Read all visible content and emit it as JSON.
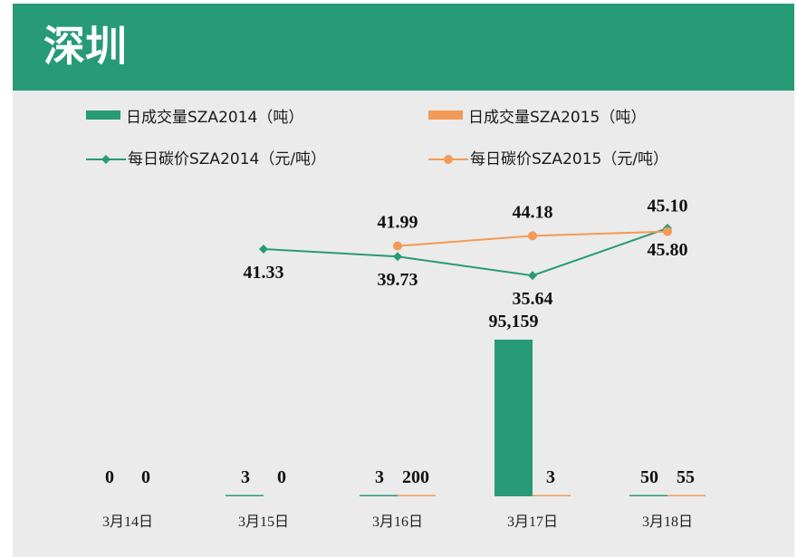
{
  "page": {
    "title": "深圳"
  },
  "colors": {
    "series_2014": "#279a76",
    "series_2015": "#f39a56",
    "header": "#279a76",
    "background": "#ebebeb"
  },
  "legend": [
    {
      "label": "日成交量SZA2014（吨）",
      "kind": "bar",
      "color": "#279a76"
    },
    {
      "label": "日成交量SZA2015（吨）",
      "kind": "bar",
      "color": "#f39a56"
    },
    {
      "label": "每日碳价SZA2014（元/吨）",
      "kind": "line-diamond",
      "color": "#279a76"
    },
    {
      "label": "每日碳价SZA2015（元/吨）",
      "kind": "line-circle",
      "color": "#f39a56"
    }
  ],
  "chart_data": {
    "type": "bar+line",
    "title": "深圳",
    "categories": [
      "3月14日",
      "3月15日",
      "3月16日",
      "3月17日",
      "3月18日"
    ],
    "bar_series": [
      {
        "name": "日成交量SZA2014（吨）",
        "values": [
          0,
          3,
          3,
          95159,
          50
        ],
        "labels": [
          "0",
          "3",
          "3",
          "95,159",
          "50"
        ]
      },
      {
        "name": "日成交量SZA2015（吨）",
        "values": [
          0,
          0,
          200,
          3,
          55
        ],
        "labels": [
          "0",
          "0",
          "200",
          "3",
          "55"
        ]
      }
    ],
    "line_series": [
      {
        "name": "每日碳价SZA2014（元/吨）",
        "values": [
          null,
          41.33,
          39.73,
          35.64,
          45.8
        ],
        "labels": [
          "",
          "41.33",
          "39.73",
          "35.64",
          "45.80"
        ]
      },
      {
        "name": "每日碳价SZA2015（元/吨）",
        "values": [
          null,
          null,
          41.99,
          44.18,
          45.1
        ],
        "labels": [
          "",
          "",
          "41.99",
          "44.18",
          "45.10"
        ]
      }
    ],
    "grid": false,
    "legend_position": "top"
  }
}
